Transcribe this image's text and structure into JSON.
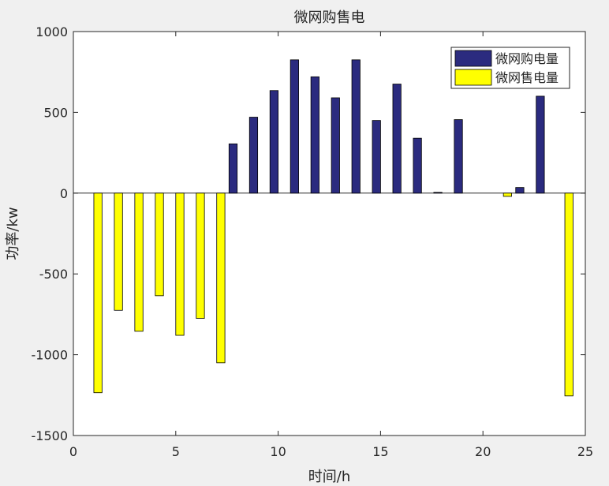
{
  "chart_data": {
    "type": "bar",
    "title": "微网购售电",
    "xlabel": "时间/h",
    "ylabel": "功率/kw",
    "xlim": [
      0,
      25
    ],
    "ylim": [
      -1500,
      1000
    ],
    "xticks": [
      0,
      5,
      10,
      15,
      20,
      25
    ],
    "yticks": [
      -1500,
      -1000,
      -500,
      0,
      500,
      1000
    ],
    "grid": false,
    "legend_position": "top-right",
    "x": [
      1,
      2,
      3,
      4,
      5,
      6,
      7,
      8,
      9,
      10,
      11,
      12,
      13,
      14,
      15,
      16,
      17,
      18,
      19,
      20,
      21,
      22,
      23,
      24
    ],
    "series": [
      {
        "name": "微网购电量",
        "color": "#2b2b7f",
        "values": [
          0,
          0,
          0,
          0,
          0,
          0,
          0,
          305,
          470,
          635,
          825,
          720,
          590,
          825,
          450,
          675,
          340,
          5,
          455,
          0,
          0,
          35,
          600,
          0
        ]
      },
      {
        "name": "微网售电量",
        "color": "#ffff00",
        "values": [
          -1235,
          -725,
          -855,
          -635,
          -880,
          -775,
          -1050,
          0,
          0,
          0,
          0,
          0,
          0,
          0,
          0,
          0,
          0,
          0,
          0,
          0,
          -20,
          0,
          0,
          -1255
        ]
      }
    ]
  }
}
